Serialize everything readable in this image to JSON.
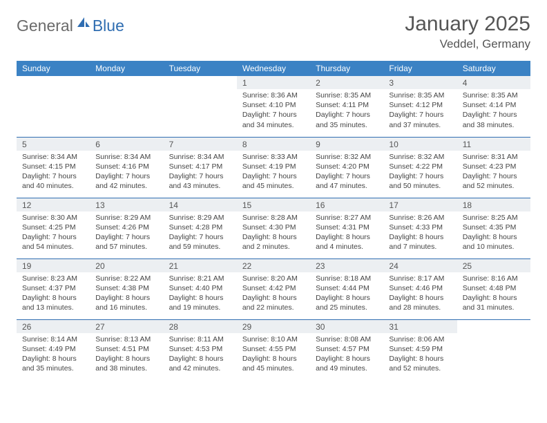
{
  "logo": {
    "text1": "General",
    "text2": "Blue"
  },
  "title": "January 2025",
  "location": "Veddel, Germany",
  "weekdays": [
    "Sunday",
    "Monday",
    "Tuesday",
    "Wednesday",
    "Thursday",
    "Friday",
    "Saturday"
  ],
  "style": {
    "header_bg": "#3b82c4",
    "header_fg": "#ffffff",
    "daynum_bg": "#eceff2",
    "border_color": "#2f6db1",
    "logo_gray": "#6b6b6b",
    "logo_blue": "#2f6db1",
    "title_color": "#555555",
    "body_text": "#444444",
    "title_fontsize": 30,
    "location_fontsize": 17,
    "weekday_fontsize": 12,
    "daynum_fontsize": 12,
    "content_fontsize": 10.5
  },
  "calendar": {
    "first_weekday_index": 3,
    "days": [
      {
        "n": 1,
        "sunrise": "8:36 AM",
        "sunset": "4:10 PM",
        "daylight": "7 hours and 34 minutes."
      },
      {
        "n": 2,
        "sunrise": "8:35 AM",
        "sunset": "4:11 PM",
        "daylight": "7 hours and 35 minutes."
      },
      {
        "n": 3,
        "sunrise": "8:35 AM",
        "sunset": "4:12 PM",
        "daylight": "7 hours and 37 minutes."
      },
      {
        "n": 4,
        "sunrise": "8:35 AM",
        "sunset": "4:14 PM",
        "daylight": "7 hours and 38 minutes."
      },
      {
        "n": 5,
        "sunrise": "8:34 AM",
        "sunset": "4:15 PM",
        "daylight": "7 hours and 40 minutes."
      },
      {
        "n": 6,
        "sunrise": "8:34 AM",
        "sunset": "4:16 PM",
        "daylight": "7 hours and 42 minutes."
      },
      {
        "n": 7,
        "sunrise": "8:34 AM",
        "sunset": "4:17 PM",
        "daylight": "7 hours and 43 minutes."
      },
      {
        "n": 8,
        "sunrise": "8:33 AM",
        "sunset": "4:19 PM",
        "daylight": "7 hours and 45 minutes."
      },
      {
        "n": 9,
        "sunrise": "8:32 AM",
        "sunset": "4:20 PM",
        "daylight": "7 hours and 47 minutes."
      },
      {
        "n": 10,
        "sunrise": "8:32 AM",
        "sunset": "4:22 PM",
        "daylight": "7 hours and 50 minutes."
      },
      {
        "n": 11,
        "sunrise": "8:31 AM",
        "sunset": "4:23 PM",
        "daylight": "7 hours and 52 minutes."
      },
      {
        "n": 12,
        "sunrise": "8:30 AM",
        "sunset": "4:25 PM",
        "daylight": "7 hours and 54 minutes."
      },
      {
        "n": 13,
        "sunrise": "8:29 AM",
        "sunset": "4:26 PM",
        "daylight": "7 hours and 57 minutes."
      },
      {
        "n": 14,
        "sunrise": "8:29 AM",
        "sunset": "4:28 PM",
        "daylight": "7 hours and 59 minutes."
      },
      {
        "n": 15,
        "sunrise": "8:28 AM",
        "sunset": "4:30 PM",
        "daylight": "8 hours and 2 minutes."
      },
      {
        "n": 16,
        "sunrise": "8:27 AM",
        "sunset": "4:31 PM",
        "daylight": "8 hours and 4 minutes."
      },
      {
        "n": 17,
        "sunrise": "8:26 AM",
        "sunset": "4:33 PM",
        "daylight": "8 hours and 7 minutes."
      },
      {
        "n": 18,
        "sunrise": "8:25 AM",
        "sunset": "4:35 PM",
        "daylight": "8 hours and 10 minutes."
      },
      {
        "n": 19,
        "sunrise": "8:23 AM",
        "sunset": "4:37 PM",
        "daylight": "8 hours and 13 minutes."
      },
      {
        "n": 20,
        "sunrise": "8:22 AM",
        "sunset": "4:38 PM",
        "daylight": "8 hours and 16 minutes."
      },
      {
        "n": 21,
        "sunrise": "8:21 AM",
        "sunset": "4:40 PM",
        "daylight": "8 hours and 19 minutes."
      },
      {
        "n": 22,
        "sunrise": "8:20 AM",
        "sunset": "4:42 PM",
        "daylight": "8 hours and 22 minutes."
      },
      {
        "n": 23,
        "sunrise": "8:18 AM",
        "sunset": "4:44 PM",
        "daylight": "8 hours and 25 minutes."
      },
      {
        "n": 24,
        "sunrise": "8:17 AM",
        "sunset": "4:46 PM",
        "daylight": "8 hours and 28 minutes."
      },
      {
        "n": 25,
        "sunrise": "8:16 AM",
        "sunset": "4:48 PM",
        "daylight": "8 hours and 31 minutes."
      },
      {
        "n": 26,
        "sunrise": "8:14 AM",
        "sunset": "4:49 PM",
        "daylight": "8 hours and 35 minutes."
      },
      {
        "n": 27,
        "sunrise": "8:13 AM",
        "sunset": "4:51 PM",
        "daylight": "8 hours and 38 minutes."
      },
      {
        "n": 28,
        "sunrise": "8:11 AM",
        "sunset": "4:53 PM",
        "daylight": "8 hours and 42 minutes."
      },
      {
        "n": 29,
        "sunrise": "8:10 AM",
        "sunset": "4:55 PM",
        "daylight": "8 hours and 45 minutes."
      },
      {
        "n": 30,
        "sunrise": "8:08 AM",
        "sunset": "4:57 PM",
        "daylight": "8 hours and 49 minutes."
      },
      {
        "n": 31,
        "sunrise": "8:06 AM",
        "sunset": "4:59 PM",
        "daylight": "8 hours and 52 minutes."
      }
    ],
    "labels": {
      "sunrise": "Sunrise:",
      "sunset": "Sunset:",
      "daylight": "Daylight:"
    }
  }
}
